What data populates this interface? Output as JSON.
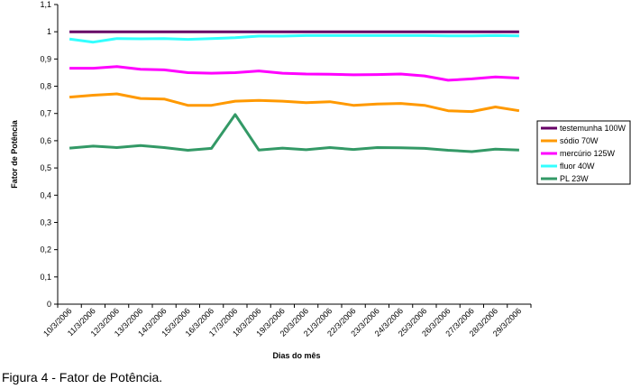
{
  "caption": "Figura 4 - Fator de Potência.",
  "chart_data": {
    "type": "line",
    "title": "",
    "xlabel": "Dias do mês",
    "ylabel": "Fator de Potência",
    "ylim": [
      0,
      1.1
    ],
    "yticks": [
      "0",
      "0,1",
      "0,2",
      "0,3",
      "0,4",
      "0,5",
      "0,6",
      "0,7",
      "0,8",
      "0,9",
      "1",
      "1,1"
    ],
    "grid": false,
    "legend_position": "right",
    "categories": [
      "10/3/2006",
      "11/3/2006",
      "12/3/2006",
      "13/3/2006",
      "14/3/2006",
      "15/3/2006",
      "16/3/2006",
      "17/3/2006",
      "18/3/2006",
      "19/3/2006",
      "20/3/2006",
      "21/3/2006",
      "22/3/2006",
      "23/3/2006",
      "24/3/2006",
      "25/3/2006",
      "26/3/2006",
      "27/3/2006",
      "28/3/2006",
      "29/3/2006"
    ],
    "series": [
      {
        "name": "testemunha 100W",
        "color": "#660066",
        "values": [
          1,
          1,
          1,
          1,
          1,
          1,
          1,
          1,
          1,
          1,
          1,
          1,
          1,
          1,
          1,
          1,
          1,
          1,
          1,
          1
        ]
      },
      {
        "name": "sódio 70W",
        "color": "#ff9900",
        "values": [
          0.76,
          0.767,
          0.772,
          0.755,
          0.753,
          0.73,
          0.73,
          0.745,
          0.748,
          0.745,
          0.74,
          0.743,
          0.73,
          0.735,
          0.737,
          0.73,
          0.71,
          0.707,
          0.724,
          0.71
        ]
      },
      {
        "name": "mercúrio 125W",
        "color": "#ff00ff",
        "values": [
          0.866,
          0.866,
          0.872,
          0.862,
          0.86,
          0.85,
          0.848,
          0.85,
          0.856,
          0.848,
          0.845,
          0.844,
          0.842,
          0.843,
          0.845,
          0.838,
          0.822,
          0.827,
          0.834,
          0.83
        ]
      },
      {
        "name": "fluor 40W",
        "color": "#33ffff",
        "values": [
          0.973,
          0.962,
          0.975,
          0.974,
          0.975,
          0.972,
          0.975,
          0.978,
          0.984,
          0.984,
          0.986,
          0.986,
          0.986,
          0.986,
          0.986,
          0.986,
          0.985,
          0.985,
          0.986,
          0.985
        ]
      },
      {
        "name": "PL 23W",
        "color": "#339966",
        "values": [
          0.573,
          0.58,
          0.575,
          0.582,
          0.575,
          0.565,
          0.572,
          0.696,
          0.566,
          0.573,
          0.567,
          0.575,
          0.568,
          0.575,
          0.574,
          0.572,
          0.565,
          0.56,
          0.569,
          0.566
        ]
      }
    ]
  }
}
